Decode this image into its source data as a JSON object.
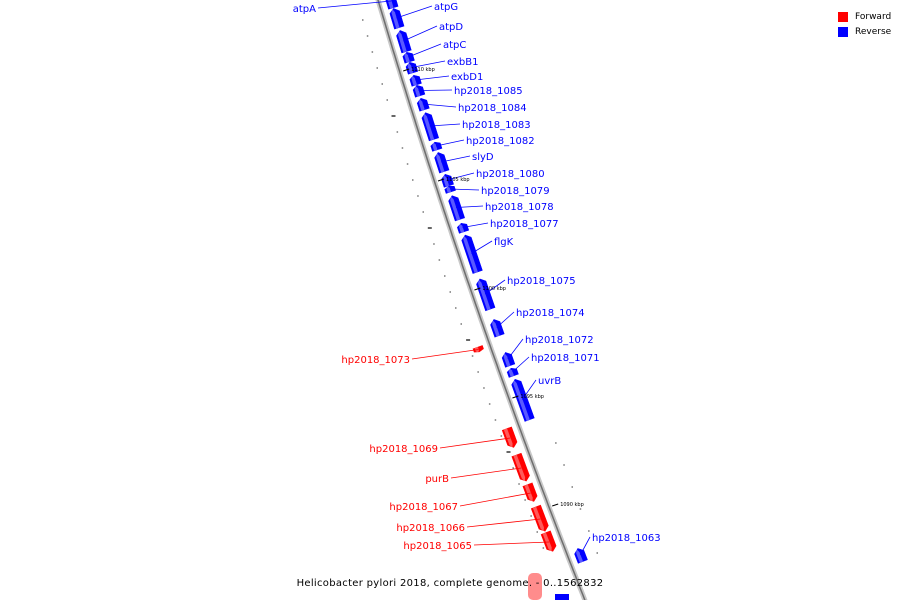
{
  "colors": {
    "forward": "#ff0000",
    "reverse": "#0000ff",
    "axis": "#8a8a8a"
  },
  "legend": [
    {
      "label": "Forward",
      "color": "#ff0000"
    },
    {
      "label": "Reverse",
      "color": "#0000ff"
    }
  ],
  "caption": "Helicobacter pylori 2018, complete genome. - 0..1562832",
  "ticks": [
    "1110 kbp",
    "1105 kbp",
    "1100 kbp",
    "1095 kbp",
    "1090 kbp"
  ],
  "genes": [
    {
      "name": "atpA",
      "strand": "reverse"
    },
    {
      "name": "atpG",
      "strand": "reverse"
    },
    {
      "name": "atpD",
      "strand": "reverse"
    },
    {
      "name": "atpC",
      "strand": "reverse"
    },
    {
      "name": "exbB1",
      "strand": "reverse"
    },
    {
      "name": "exbD1",
      "strand": "reverse"
    },
    {
      "name": "hp2018_1085",
      "strand": "reverse"
    },
    {
      "name": "hp2018_1084",
      "strand": "reverse"
    },
    {
      "name": "hp2018_1083",
      "strand": "reverse"
    },
    {
      "name": "hp2018_1082",
      "strand": "reverse"
    },
    {
      "name": "slyD",
      "strand": "reverse"
    },
    {
      "name": "hp2018_1080",
      "strand": "reverse"
    },
    {
      "name": "hp2018_1079",
      "strand": "reverse"
    },
    {
      "name": "hp2018_1078",
      "strand": "reverse"
    },
    {
      "name": "hp2018_1077",
      "strand": "reverse"
    },
    {
      "name": "flgK",
      "strand": "reverse"
    },
    {
      "name": "hp2018_1075",
      "strand": "reverse"
    },
    {
      "name": "hp2018_1074",
      "strand": "reverse"
    },
    {
      "name": "hp2018_1073",
      "strand": "forward"
    },
    {
      "name": "hp2018_1072",
      "strand": "reverse"
    },
    {
      "name": "hp2018_1071",
      "strand": "reverse"
    },
    {
      "name": "uvrB",
      "strand": "reverse"
    },
    {
      "name": "hp2018_1069",
      "strand": "forward"
    },
    {
      "name": "purB",
      "strand": "forward"
    },
    {
      "name": "hp2018_1067",
      "strand": "forward"
    },
    {
      "name": "hp2018_1066",
      "strand": "forward"
    },
    {
      "name": "hp2018_1065",
      "strand": "forward"
    },
    {
      "name": "hp2018_1063",
      "strand": "reverse"
    }
  ]
}
